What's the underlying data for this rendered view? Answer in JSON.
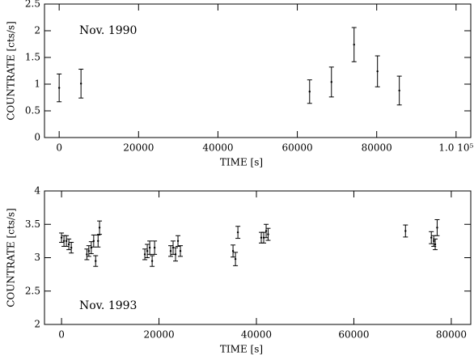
{
  "chart_data": [
    {
      "type": "errorbar",
      "annotation": "Nov. 1990",
      "xlabel": "TIME [s]",
      "ylabel": "COUNTRATE [cts/s]",
      "x": [
        0,
        5500,
        63100,
        68600,
        74300,
        80200,
        85700
      ],
      "values": [
        0.93,
        1.01,
        0.86,
        1.04,
        1.74,
        1.24,
        0.88
      ],
      "errors": [
        0.26,
        0.27,
        0.22,
        0.28,
        0.32,
        0.29,
        0.27
      ],
      "color": "#000000",
      "xlim": [
        -3700,
        103700
      ],
      "ylim": [
        0,
        2.5
      ],
      "xticks": [
        0,
        20000,
        40000,
        60000,
        80000,
        {
          "value": 100000,
          "label": "1.0 10⁵"
        }
      ],
      "yticks": [
        0,
        0.5,
        1,
        1.5,
        2,
        2.5
      ]
    },
    {
      "type": "errorbar",
      "annotation": "Nov. 1993",
      "xlabel": "TIME [s]",
      "ylabel": "COUNTRATE [cts/s]",
      "x": [
        0,
        500,
        1000,
        1500,
        2000,
        5200,
        5600,
        6100,
        6600,
        7000,
        7500,
        7800,
        17100,
        17600,
        18100,
        18600,
        19100,
        22400,
        22900,
        23400,
        23900,
        24400,
        35200,
        35700,
        36200,
        41000,
        41500,
        42000,
        42400,
        70600,
        75900,
        76400,
        76700,
        77100
      ],
      "values": [
        3.3,
        3.25,
        3.25,
        3.2,
        3.15,
        3.05,
        3.1,
        3.15,
        3.25,
        2.95,
        3.25,
        3.45,
        3.05,
        3.1,
        3.15,
        2.95,
        3.15,
        3.1,
        3.15,
        3.05,
        3.25,
        3.1,
        3.1,
        2.98,
        3.38,
        3.3,
        3.3,
        3.4,
        3.35,
        3.4,
        3.3,
        3.25,
        3.2,
        3.45
      ],
      "errors": [
        0.07,
        0.08,
        0.08,
        0.08,
        0.08,
        0.08,
        0.08,
        0.09,
        0.09,
        0.08,
        0.09,
        0.1,
        0.08,
        0.1,
        0.1,
        0.08,
        0.1,
        0.08,
        0.1,
        0.1,
        0.08,
        0.08,
        0.09,
        0.1,
        0.09,
        0.08,
        0.08,
        0.1,
        0.09,
        0.09,
        0.09,
        0.08,
        0.08,
        0.12
      ],
      "color": "#000000",
      "xlim": [
        -3500,
        84000
      ],
      "ylim": [
        2,
        4
      ],
      "xticks": [
        0,
        20000,
        40000,
        60000,
        80000
      ],
      "yticks": [
        2,
        2.5,
        3,
        3.5,
        4
      ]
    }
  ]
}
